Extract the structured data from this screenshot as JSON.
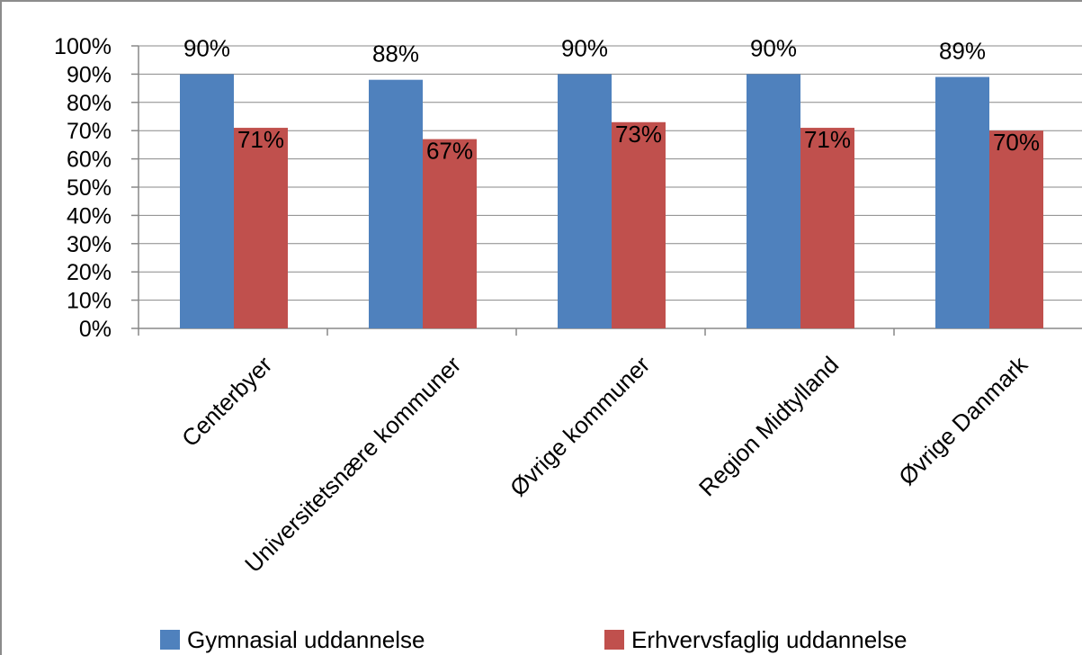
{
  "chart_data": {
    "type": "bar",
    "categories": [
      "Centerbyer",
      "Universitetsnære kommuner",
      "Øvrige kommuner",
      "Region Midtylland",
      "Øvrige Danmark"
    ],
    "series": [
      {
        "name": "Gymnasial uddannelse",
        "values": [
          90,
          88,
          90,
          90,
          89
        ],
        "labels": [
          "90%",
          "88%",
          "90%",
          "90%",
          "89%"
        ],
        "color": "#4f81bd"
      },
      {
        "name": "Erhvervsfaglig uddannelse",
        "values": [
          71,
          67,
          73,
          71,
          70
        ],
        "labels": [
          "71%",
          "67%",
          "73%",
          "71%",
          "70%"
        ],
        "color": "#c0504d"
      }
    ],
    "ylim": [
      0,
      100
    ],
    "yticks": [
      "0%",
      "10%",
      "20%",
      "30%",
      "40%",
      "50%",
      "60%",
      "70%",
      "80%",
      "90%",
      "100%"
    ],
    "grid": true,
    "legend_position": "bottom"
  }
}
